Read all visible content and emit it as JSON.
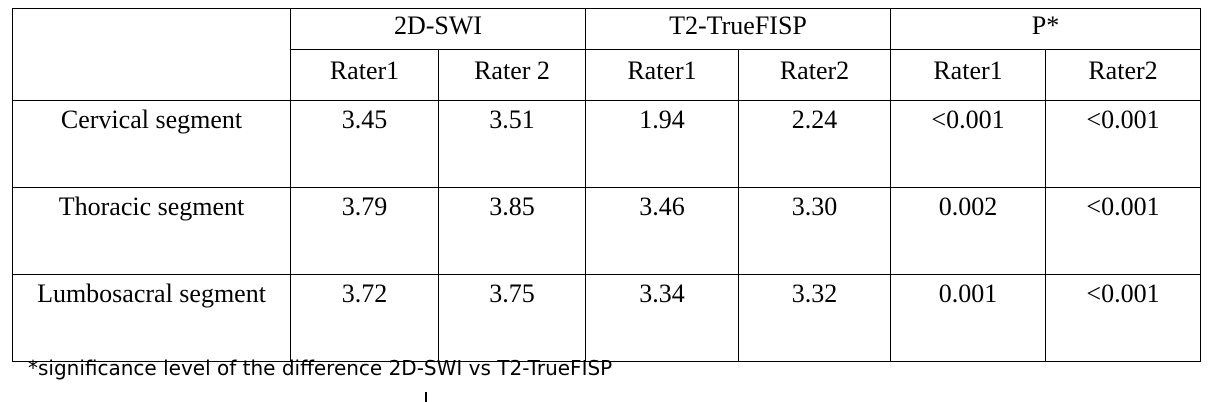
{
  "table": {
    "groups": [
      "2D-SWI",
      "T2-TrueFISP",
      "P*"
    ],
    "subheaders": [
      "Rater1",
      "Rater 2",
      "Rater1",
      "Rater2",
      "Rater1",
      "Rater2"
    ],
    "rows": [
      [
        "Cervical segment",
        "3.45",
        "3.51",
        "1.94",
        "2.24",
        "<0.001",
        "<0.001"
      ],
      [
        "Thoracic segment",
        "3.79",
        "3.85",
        "3.46",
        "3.30",
        "0.002",
        "<0.001"
      ],
      [
        "Lumbosacral segment",
        "3.72",
        "3.75",
        "3.34",
        "3.32",
        "0.001",
        "<0.001"
      ]
    ]
  },
  "footnote": "*significance level of the difference 2D-SWI vs T2-TrueFISP"
}
